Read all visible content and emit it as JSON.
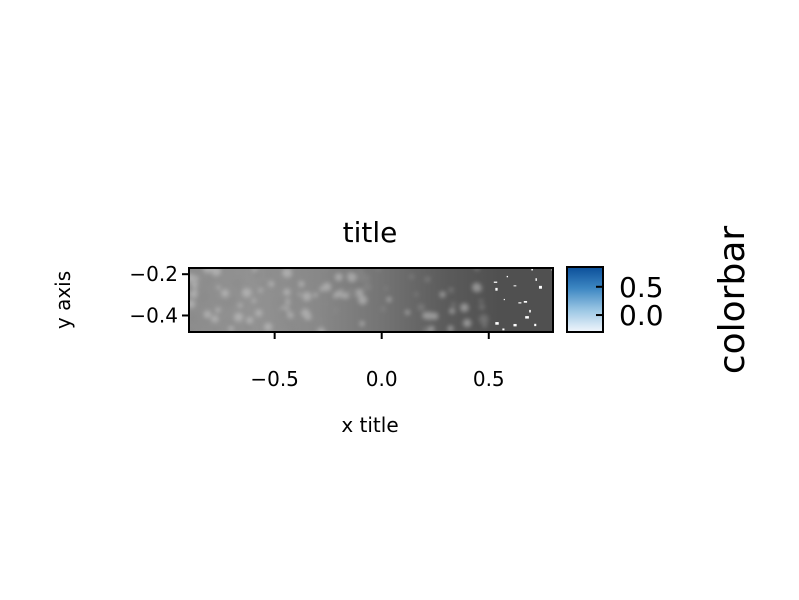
{
  "chart_data": {
    "type": "heatmap",
    "title": "title",
    "xlabel": "x title",
    "ylabel": "y axis",
    "xlim": [
      -0.9,
      0.8
    ],
    "ylim": [
      -0.48,
      -0.17
    ],
    "x_ticks": [
      {
        "value": -0.5,
        "label": "−0.5"
      },
      {
        "value": 0.0,
        "label": "0.0"
      },
      {
        "value": 0.5,
        "label": "0.5"
      }
    ],
    "y_ticks": [
      {
        "value": -0.2,
        "label": "−0.2"
      },
      {
        "value": -0.4,
        "label": "−0.4"
      }
    ],
    "field": {
      "description_values": "gray level (0 = light, 1 = dark) across x",
      "x": [
        -0.9,
        -0.6,
        -0.3,
        0.0,
        0.3,
        0.55,
        0.8
      ],
      "level": [
        0.45,
        0.42,
        0.48,
        0.6,
        0.75,
        0.82,
        0.82
      ]
    },
    "colormap": "grays",
    "colorbar": {
      "label": "colorbar",
      "colormap": "blues",
      "range": [
        -0.3,
        0.85
      ],
      "ticks": [
        {
          "value": 0.0,
          "label": "0.0"
        },
        {
          "value": 0.5,
          "label": "0.5"
        }
      ],
      "colors": [
        "#f1f6fc",
        "#9cc7e4",
        "#3e88c3",
        "#0b4f9a"
      ]
    },
    "grid": false
  }
}
